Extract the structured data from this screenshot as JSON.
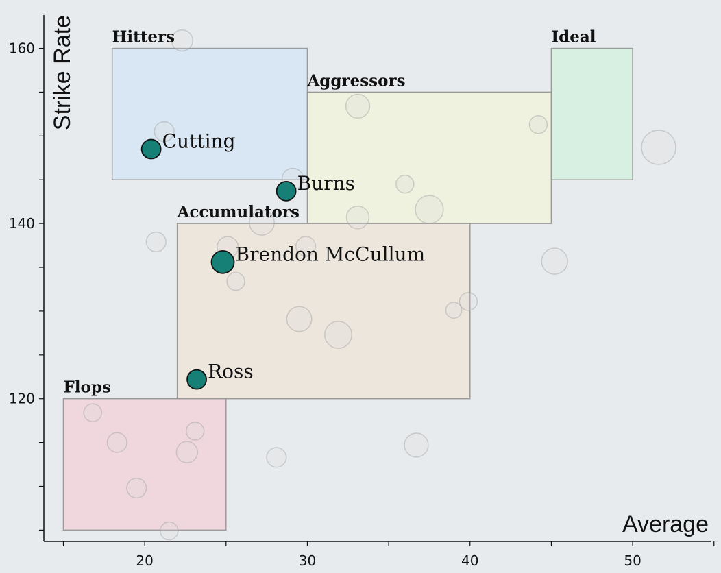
{
  "chart_data": {
    "type": "scatter",
    "xlabel": "Average",
    "ylabel": "Strike Rate",
    "xlim": [
      13.8,
      54.8
    ],
    "ylim": [
      103.7,
      163.8
    ],
    "xticks": [
      15,
      20,
      25,
      30,
      35,
      40,
      45,
      50,
      55
    ],
    "xtick_labels": [
      "",
      "20",
      "",
      "30",
      "",
      "40",
      "",
      "50",
      ""
    ],
    "yticks": [
      105,
      110,
      115,
      120,
      125,
      130,
      135,
      140,
      145,
      150,
      155,
      160
    ],
    "ytick_labels": [
      "",
      "",
      "",
      "120",
      "",
      "",
      "",
      "140",
      "",
      "",
      "",
      "160"
    ],
    "zones": [
      {
        "label": "Hitters",
        "x": [
          18,
          30
        ],
        "y": [
          145,
          160
        ],
        "color": "#d8e7f3"
      },
      {
        "label": "Aggressors",
        "x": [
          30,
          45
        ],
        "y": [
          140,
          155
        ],
        "color": "#eef2de"
      },
      {
        "label": "Ideal",
        "x": [
          45,
          50
        ],
        "y": [
          145,
          160
        ],
        "color": "#d8f0e1"
      },
      {
        "label": "Accumulators",
        "x": [
          22,
          40
        ],
        "y": [
          120,
          140
        ],
        "color": "#ede6dd"
      },
      {
        "label": "Flops",
        "x": [
          15,
          25
        ],
        "y": [
          105,
          120
        ],
        "color": "#f0d7dd"
      }
    ],
    "background_points": [
      {
        "x": 22.3,
        "y": 160.9,
        "size": 2
      },
      {
        "x": 21.2,
        "y": 150.5,
        "size": 1.5
      },
      {
        "x": 33.1,
        "y": 153.4,
        "size": 3
      },
      {
        "x": 44.2,
        "y": 151.3,
        "size": 1
      },
      {
        "x": 51.6,
        "y": 148.7,
        "size": 9
      },
      {
        "x": 29.1,
        "y": 145.1,
        "size": 2
      },
      {
        "x": 36.0,
        "y": 144.5,
        "size": 1
      },
      {
        "x": 37.5,
        "y": 141.6,
        "size": 5
      },
      {
        "x": 33.1,
        "y": 140.7,
        "size": 2.5
      },
      {
        "x": 27.2,
        "y": 140.1,
        "size": 3.5
      },
      {
        "x": 20.7,
        "y": 137.9,
        "size": 1.5
      },
      {
        "x": 25.1,
        "y": 137.3,
        "size": 2
      },
      {
        "x": 29.9,
        "y": 137.4,
        "size": 1.5
      },
      {
        "x": 45.2,
        "y": 135.7,
        "size": 4
      },
      {
        "x": 25.6,
        "y": 133.4,
        "size": 1
      },
      {
        "x": 39.9,
        "y": 131.1,
        "size": 1
      },
      {
        "x": 39.0,
        "y": 130.1,
        "size": 0.6
      },
      {
        "x": 29.5,
        "y": 129.1,
        "size": 3.5
      },
      {
        "x": 31.9,
        "y": 127.3,
        "size": 4.5
      },
      {
        "x": 16.8,
        "y": 118.4,
        "size": 1
      },
      {
        "x": 18.3,
        "y": 115.0,
        "size": 1.5
      },
      {
        "x": 23.1,
        "y": 116.3,
        "size": 1
      },
      {
        "x": 22.6,
        "y": 113.9,
        "size": 2
      },
      {
        "x": 28.1,
        "y": 113.3,
        "size": 1.5
      },
      {
        "x": 36.7,
        "y": 114.7,
        "size": 3
      },
      {
        "x": 19.5,
        "y": 109.8,
        "size": 1.5
      },
      {
        "x": 21.5,
        "y": 104.9,
        "size": 1
      }
    ],
    "highlighted_points": [
      {
        "name": "Cutting",
        "x": 20.4,
        "y": 148.5,
        "size": 1
      },
      {
        "name": "Burns",
        "x": 28.7,
        "y": 143.7,
        "size": 1
      },
      {
        "name": "Brendon McCullum",
        "x": 24.8,
        "y": 135.6,
        "size": 2
      },
      {
        "name": "Ross",
        "x": 23.2,
        "y": 122.2,
        "size": 1
      }
    ],
    "grid": false,
    "legend": "none"
  },
  "colors": {
    "background": "#e8ebee",
    "highlight": "#167f76"
  }
}
